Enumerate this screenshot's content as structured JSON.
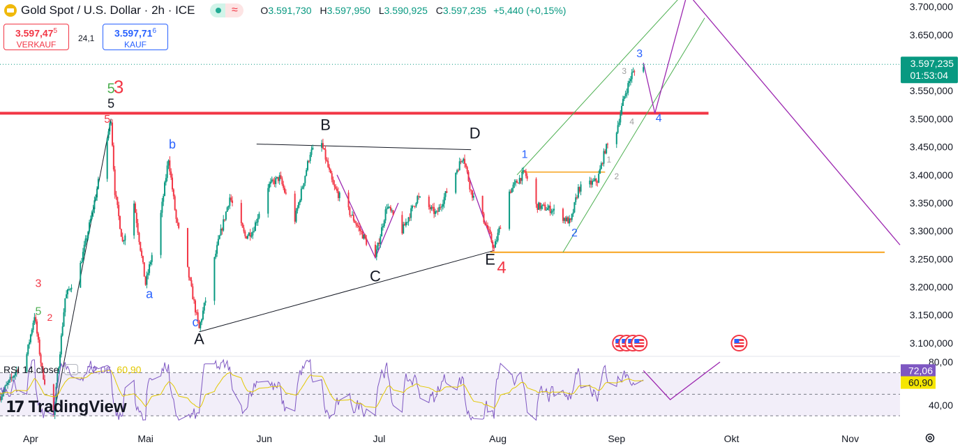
{
  "header": {
    "title": "Gold Spot / U.S. Dollar · 2h · ICE",
    "ohlc": [
      {
        "key": "O",
        "value": "3.591,730"
      },
      {
        "key": "H",
        "value": "3.597,950"
      },
      {
        "key": "L",
        "value": "3.590,925"
      },
      {
        "key": "C",
        "value": "3.597,235"
      }
    ],
    "change": "+5,440 (+0,15%)"
  },
  "trade": {
    "sell_main": "3.597,47",
    "sell_sup": "5",
    "sell_label": "VERKAUF",
    "buy_main": "3.597,71",
    "buy_sup": "6",
    "buy_label": "KAUF",
    "spread": "24,1"
  },
  "rsi": {
    "label": "RSI 14 close",
    "value": "72,06",
    "ma": "60,90"
  },
  "brand": {
    "logo_mark": "17",
    "name": "TradingView"
  },
  "icons": {
    "symbol": "gold-coin-icon",
    "settings": "gear-icon",
    "events": "us-flag-icon"
  },
  "colors": {
    "up": "#089981",
    "down": "#f23645",
    "resistance": "#f23645",
    "support": "#f7a31c",
    "channel": "#4caf50",
    "projection": "#9c27b0",
    "wave_blue": "#2962ff",
    "rsi": "#7e57c2",
    "rsi_ma": "#e2c800"
  },
  "chart_data": {
    "type": "candlestick",
    "interval": "2h",
    "price_axis": {
      "ticks": [
        3700,
        3650,
        3600,
        3550,
        3500,
        3450,
        3400,
        3350,
        3300,
        3250,
        3200,
        3150,
        3100
      ],
      "tick_labels": [
        "3.700,000",
        "3.650,000",
        "3.600,000",
        "3.550,000",
        "3.500,000",
        "3.450,000",
        "3.400,000",
        "3.350,000",
        "3.300,000",
        "3.250,000",
        "3.200,000",
        "3.150,000",
        "3.100,000"
      ],
      "range": [
        3080,
        3712
      ]
    },
    "time_axis": {
      "labels": [
        "Apr",
        "Mai",
        "Jun",
        "Jul",
        "Aug",
        "Sep",
        "Okt",
        "Nov"
      ],
      "label_dates": [
        "2025-04-01",
        "2025-05-01",
        "2025-06-01",
        "2025-07-01",
        "2025-08-01",
        "2025-09-01",
        "2025-10-01",
        "2025-11-01"
      ],
      "range": [
        "2025-03-24",
        "2025-11-14"
      ]
    },
    "last_price": {
      "value": 3597.235,
      "label": "3.597,235",
      "countdown": "01:53:04"
    },
    "price_path": [
      [
        "2025-03-24",
        3005
      ],
      [
        "2025-03-31",
        3080
      ],
      [
        "2025-04-02",
        3150
      ],
      [
        "2025-04-04",
        3050
      ],
      [
        "2025-04-07",
        2970
      ],
      [
        "2025-04-10",
        3180
      ],
      [
        "2025-04-14",
        3240
      ],
      [
        "2025-04-17",
        3330
      ],
      [
        "2025-04-22",
        3500
      ],
      [
        "2025-04-23",
        3370
      ],
      [
        "2025-04-25",
        3280
      ],
      [
        "2025-04-28",
        3350
      ],
      [
        "2025-05-01",
        3205
      ],
      [
        "2025-05-05",
        3330
      ],
      [
        "2025-05-07",
        3430
      ],
      [
        "2025-05-09",
        3320
      ],
      [
        "2025-05-12",
        3230
      ],
      [
        "2025-05-15",
        3125
      ],
      [
        "2025-05-20",
        3280
      ],
      [
        "2025-05-23",
        3360
      ],
      [
        "2025-05-27",
        3290
      ],
      [
        "2025-05-29",
        3300
      ],
      [
        "2025-06-02",
        3380
      ],
      [
        "2025-06-05",
        3395
      ],
      [
        "2025-06-09",
        3320
      ],
      [
        "2025-06-13",
        3440
      ],
      [
        "2025-06-16",
        3455
      ],
      [
        "2025-06-19",
        3380
      ],
      [
        "2025-06-24",
        3325
      ],
      [
        "2025-06-30",
        3252
      ],
      [
        "2025-07-03",
        3345
      ],
      [
        "2025-07-07",
        3300
      ],
      [
        "2025-07-11",
        3360
      ],
      [
        "2025-07-16",
        3330
      ],
      [
        "2025-07-23",
        3435
      ],
      [
        "2025-07-25",
        3370
      ],
      [
        "2025-07-29",
        3310
      ],
      [
        "2025-07-31",
        3268
      ],
      [
        "2025-08-04",
        3370
      ],
      [
        "2025-08-08",
        3405
      ],
      [
        "2025-08-11",
        3345
      ],
      [
        "2025-08-15",
        3338
      ],
      [
        "2025-08-20",
        3315
      ],
      [
        "2025-08-22",
        3375
      ],
      [
        "2025-08-27",
        3390
      ],
      [
        "2025-08-29",
        3445
      ],
      [
        "2025-09-01",
        3480
      ],
      [
        "2025-09-03",
        3540
      ],
      [
        "2025-09-04",
        3560
      ],
      [
        "2025-09-05",
        3580
      ],
      [
        "2025-09-08",
        3597
      ]
    ],
    "horizontal_lines": [
      {
        "price": 3510,
        "from": "2025-03-20",
        "to": "2025-09-25",
        "color": "#f23645",
        "role": "resistance"
      },
      {
        "price": 3262,
        "from": "2025-07-30",
        "to": "2025-11-10",
        "color": "#f7a31c",
        "role": "support"
      },
      {
        "price": 3405,
        "from": "2025-08-07",
        "to": "2025-08-29",
        "color": "#f7a31c",
        "role": "minor"
      }
    ],
    "trendlines": [
      {
        "points": [
          [
            "2025-05-15",
            3120
          ],
          [
            "2025-07-31",
            3265
          ]
        ],
        "color": "#131722"
      },
      {
        "points": [
          [
            "2025-05-30",
            3455
          ],
          [
            "2025-07-25",
            3445
          ]
        ],
        "color": "#131722"
      },
      {
        "points": [
          [
            "2025-04-07",
            2970
          ],
          [
            "2025-04-22",
            3500
          ]
        ],
        "color": "#131722"
      },
      {
        "points": [
          [
            "2025-08-06",
            3400
          ],
          [
            "2025-09-20",
            3735
          ]
        ],
        "color": "#4caf50"
      },
      {
        "points": [
          [
            "2025-08-18",
            3262
          ],
          [
            "2025-09-24",
            3680
          ]
        ],
        "color": "#4caf50"
      }
    ],
    "projections": [
      {
        "points": [
          [
            "2025-09-08",
            3600
          ],
          [
            "2025-09-11",
            3510
          ],
          [
            "2025-09-19",
            3712
          ]
        ],
        "color": "#9c27b0"
      },
      {
        "points": [
          [
            "2025-09-21",
            3712
          ],
          [
            "2025-11-14",
            3275
          ]
        ],
        "color": "#9c27b0"
      },
      {
        "points": [
          [
            "2025-06-20",
            3400
          ],
          [
            "2025-06-30",
            3252
          ],
          [
            "2025-07-06",
            3350
          ]
        ],
        "color": "#9c27b0"
      },
      {
        "points": [
          [
            "2025-07-24",
            3405
          ],
          [
            "2025-07-31",
            3270
          ]
        ],
        "color": "#9c27b0"
      }
    ],
    "wave_labels": [
      {
        "text": "5",
        "date": "2025-04-22",
        "price": 3546,
        "color": "#4caf50",
        "size": 20
      },
      {
        "text": "3",
        "date": "2025-04-24",
        "price": 3546,
        "color": "#f23645",
        "size": 26
      },
      {
        "text": "5",
        "date": "2025-04-22",
        "price": 3520,
        "color": "#131722",
        "size": 18
      },
      {
        "text": "5",
        "date": "2025-04-21",
        "price": 3493,
        "color": "#f23645",
        "size": 16
      },
      {
        "text": "b",
        "date": "2025-05-08",
        "price": 3447,
        "color": "#2962ff",
        "size": 18
      },
      {
        "text": "a",
        "date": "2025-05-02",
        "price": 3180,
        "color": "#2962ff",
        "size": 18
      },
      {
        "text": "c",
        "date": "2025-05-14",
        "price": 3130,
        "color": "#2962ff",
        "size": 18
      },
      {
        "text": "A",
        "date": "2025-05-15",
        "price": 3098,
        "color": "#131722",
        "size": 22
      },
      {
        "text": "B",
        "date": "2025-06-17",
        "price": 3480,
        "color": "#131722",
        "size": 22
      },
      {
        "text": "C",
        "date": "2025-06-30",
        "price": 3210,
        "color": "#131722",
        "size": 22
      },
      {
        "text": "D",
        "date": "2025-07-26",
        "price": 3465,
        "color": "#131722",
        "size": 22
      },
      {
        "text": "E",
        "date": "2025-07-30",
        "price": 3240,
        "color": "#131722",
        "size": 22
      },
      {
        "text": "4",
        "date": "2025-08-02",
        "price": 3225,
        "color": "#f23645",
        "size": 24
      },
      {
        "text": "1",
        "date": "2025-08-08",
        "price": 3430,
        "color": "#2962ff",
        "size": 16
      },
      {
        "text": "2",
        "date": "2025-08-21",
        "price": 3290,
        "color": "#2962ff",
        "size": 16
      },
      {
        "text": "3",
        "date": "2025-09-07",
        "price": 3610,
        "color": "#2962ff",
        "size": 16
      },
      {
        "text": "4",
        "date": "2025-09-12",
        "price": 3495,
        "color": "#2962ff",
        "size": 16
      },
      {
        "text": "1",
        "date": "2025-08-30",
        "price": 3422,
        "color": "#9e9e9e",
        "size": 12
      },
      {
        "text": "2",
        "date": "2025-09-01",
        "price": 3392,
        "color": "#9e9e9e",
        "size": 12
      },
      {
        "text": "3",
        "date": "2025-09-03",
        "price": 3580,
        "color": "#9e9e9e",
        "size": 12
      },
      {
        "text": "4",
        "date": "2025-09-05",
        "price": 3490,
        "color": "#9e9e9e",
        "size": 12
      },
      {
        "text": "3",
        "date": "2025-04-03",
        "price": 3200,
        "color": "#f23645",
        "size": 16
      },
      {
        "text": "2",
        "date": "2025-04-06",
        "price": 3140,
        "color": "#f23645",
        "size": 14
      },
      {
        "text": "5",
        "date": "2025-04-03",
        "price": 3150,
        "color": "#4caf50",
        "size": 16
      }
    ],
    "event_markers": [
      {
        "date": "2025-09-02",
        "icons": 4
      },
      {
        "date": "2025-10-03",
        "icons": 1
      }
    ],
    "rsi": {
      "levels": [
        70,
        50,
        30
      ],
      "tick_labels": [
        "80,00",
        "40,00"
      ],
      "ticks": [
        80,
        40
      ],
      "range": [
        25,
        82
      ],
      "current": 72.06,
      "ma": 60.9,
      "projection": [
        [
          "2025-09-08",
          72
        ],
        [
          "2025-09-15",
          45
        ],
        [
          "2025-09-28",
          80
        ]
      ]
    }
  }
}
